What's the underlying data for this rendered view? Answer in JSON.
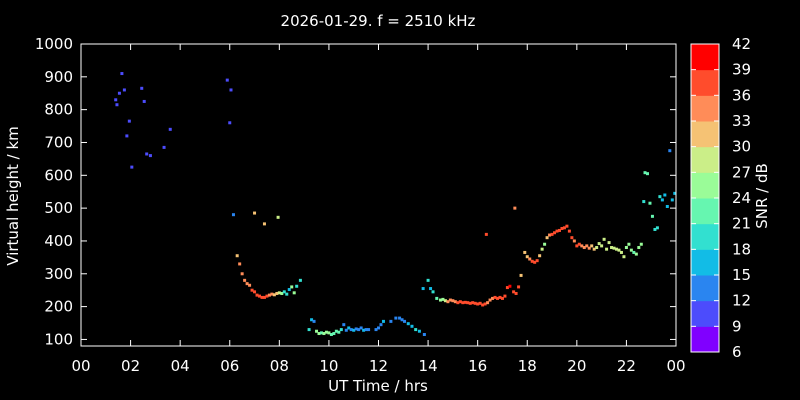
{
  "chart_data": {
    "type": "scatter",
    "title": "2026-01-29. f = 2510 kHz",
    "xlabel": "UT Time / hrs",
    "ylabel": "Virtual height / km",
    "xlim": [
      0,
      24
    ],
    "ylim": [
      80,
      1000
    ],
    "x_ticks": [
      "00",
      "02",
      "04",
      "06",
      "08",
      "10",
      "12",
      "14",
      "16",
      "18",
      "20",
      "22",
      "00"
    ],
    "y_ticks": [
      100,
      200,
      300,
      400,
      500,
      600,
      700,
      800,
      900,
      1000
    ],
    "colorbar": {
      "label": "SNR / dB",
      "range": [
        6,
        42
      ],
      "ticks": [
        6,
        9,
        12,
        15,
        18,
        21,
        24,
        27,
        30,
        33,
        36,
        39,
        42
      ],
      "colors": [
        "#8000ff",
        "#4c4cfc",
        "#2a85f0",
        "#12bce6",
        "#32e0d0",
        "#66f6b0",
        "#9afc98",
        "#cbee88",
        "#f5c274",
        "#ff8c58",
        "#ff4c2c",
        "#ff0000"
      ]
    },
    "points": [
      [
        1.4,
        830,
        9
      ],
      [
        1.45,
        815,
        9
      ],
      [
        1.55,
        850,
        9
      ],
      [
        1.65,
        910,
        10
      ],
      [
        1.75,
        860,
        9
      ],
      [
        1.85,
        720,
        9
      ],
      [
        1.95,
        765,
        10
      ],
      [
        2.05,
        625,
        10
      ],
      [
        2.45,
        865,
        10
      ],
      [
        2.55,
        825,
        10
      ],
      [
        2.65,
        665,
        9
      ],
      [
        2.8,
        660,
        9
      ],
      [
        3.35,
        685,
        10
      ],
      [
        3.6,
        740,
        10
      ],
      [
        5.9,
        890,
        10
      ],
      [
        6.0,
        760,
        11
      ],
      [
        6.05,
        860,
        11
      ],
      [
        6.15,
        480,
        13
      ],
      [
        6.3,
        355,
        32
      ],
      [
        6.4,
        330,
        33
      ],
      [
        6.5,
        300,
        34
      ],
      [
        6.6,
        280,
        34
      ],
      [
        6.7,
        270,
        34
      ],
      [
        6.8,
        265,
        35
      ],
      [
        6.9,
        250,
        36
      ],
      [
        7.0,
        245,
        36
      ],
      [
        7.1,
        235,
        37
      ],
      [
        7.2,
        232,
        37
      ],
      [
        7.3,
        228,
        37
      ],
      [
        7.4,
        228,
        37
      ],
      [
        7.5,
        232,
        36
      ],
      [
        7.6,
        235,
        35
      ],
      [
        7.7,
        238,
        33
      ],
      [
        7.8,
        236,
        32
      ],
      [
        7.9,
        240,
        30
      ],
      [
        8.0,
        242,
        29
      ],
      [
        8.1,
        240,
        26
      ],
      [
        8.2,
        245,
        20
      ],
      [
        8.3,
        238,
        18
      ],
      [
        8.4,
        252,
        17
      ],
      [
        8.5,
        260,
        25
      ],
      [
        8.6,
        242,
        24
      ],
      [
        8.7,
        262,
        20
      ],
      [
        8.85,
        280,
        18
      ],
      [
        7.0,
        485,
        30
      ],
      [
        7.4,
        452,
        30
      ],
      [
        7.95,
        472,
        28
      ],
      [
        9.2,
        130,
        18
      ],
      [
        9.3,
        160,
        15
      ],
      [
        9.4,
        155,
        12
      ],
      [
        9.5,
        125,
        24
      ],
      [
        9.6,
        118,
        24
      ],
      [
        9.7,
        120,
        23
      ],
      [
        9.8,
        118,
        24
      ],
      [
        9.9,
        122,
        25
      ],
      [
        10.0,
        120,
        24
      ],
      [
        10.1,
        115,
        23
      ],
      [
        10.2,
        118,
        22
      ],
      [
        10.3,
        125,
        22
      ],
      [
        10.4,
        122,
        21
      ],
      [
        10.5,
        130,
        18
      ],
      [
        10.6,
        145,
        13
      ],
      [
        10.7,
        128,
        14
      ],
      [
        10.8,
        135,
        15
      ],
      [
        10.9,
        130,
        14
      ],
      [
        11.0,
        128,
        15
      ],
      [
        11.1,
        132,
        14
      ],
      [
        11.2,
        130,
        14
      ],
      [
        11.3,
        135,
        13
      ],
      [
        11.4,
        128,
        15
      ],
      [
        11.5,
        130,
        14
      ],
      [
        11.6,
        130,
        13
      ],
      [
        11.9,
        130,
        14
      ],
      [
        12.0,
        135,
        13
      ],
      [
        12.1,
        145,
        14
      ],
      [
        12.2,
        155,
        15
      ],
      [
        12.5,
        155,
        13
      ],
      [
        12.7,
        165,
        12
      ],
      [
        12.85,
        165,
        13
      ],
      [
        12.95,
        160,
        14
      ],
      [
        13.05,
        155,
        14
      ],
      [
        13.2,
        148,
        15
      ],
      [
        13.35,
        140,
        16
      ],
      [
        13.5,
        130,
        18
      ],
      [
        13.65,
        125,
        16
      ],
      [
        13.85,
        115,
        13
      ],
      [
        13.8,
        255,
        15
      ],
      [
        14.0,
        280,
        18
      ],
      [
        14.1,
        255,
        17
      ],
      [
        14.2,
        245,
        20
      ],
      [
        14.35,
        225,
        21
      ],
      [
        14.5,
        220,
        24
      ],
      [
        14.6,
        222,
        26
      ],
      [
        14.7,
        218,
        28
      ],
      [
        14.8,
        215,
        33
      ],
      [
        14.9,
        220,
        34
      ],
      [
        15.0,
        218,
        35
      ],
      [
        15.1,
        215,
        35
      ],
      [
        15.2,
        212,
        36
      ],
      [
        15.3,
        215,
        36
      ],
      [
        15.4,
        212,
        37
      ],
      [
        15.5,
        213,
        37
      ],
      [
        15.6,
        212,
        36
      ],
      [
        15.7,
        210,
        36
      ],
      [
        15.8,
        212,
        37
      ],
      [
        15.9,
        210,
        37
      ],
      [
        16.0,
        208,
        37
      ],
      [
        16.1,
        210,
        37
      ],
      [
        16.2,
        205,
        37
      ],
      [
        16.3,
        208,
        36
      ],
      [
        16.4,
        212,
        35
      ],
      [
        16.5,
        220,
        34
      ],
      [
        16.6,
        225,
        34
      ],
      [
        16.7,
        228,
        36
      ],
      [
        16.8,
        225,
        36
      ],
      [
        16.9,
        228,
        36
      ],
      [
        17.0,
        225,
        37
      ],
      [
        17.1,
        232,
        37
      ],
      [
        17.2,
        258,
        38
      ],
      [
        17.3,
        262,
        39
      ],
      [
        17.45,
        245,
        38
      ],
      [
        17.55,
        240,
        37
      ],
      [
        17.65,
        260,
        36
      ],
      [
        17.75,
        295,
        31
      ],
      [
        16.35,
        420,
        37
      ],
      [
        17.5,
        500,
        33
      ],
      [
        17.9,
        365,
        31
      ],
      [
        18.0,
        352,
        32
      ],
      [
        18.1,
        345,
        34
      ],
      [
        18.2,
        338,
        36
      ],
      [
        18.3,
        335,
        37
      ],
      [
        18.4,
        340,
        37
      ],
      [
        18.5,
        355,
        32
      ],
      [
        18.6,
        375,
        28
      ],
      [
        18.7,
        390,
        25
      ],
      [
        18.8,
        410,
        32
      ],
      [
        18.9,
        418,
        35
      ],
      [
        19.0,
        420,
        37
      ],
      [
        19.1,
        425,
        37
      ],
      [
        19.2,
        430,
        37
      ],
      [
        19.3,
        432,
        36
      ],
      [
        19.4,
        438,
        36
      ],
      [
        19.5,
        440,
        36
      ],
      [
        19.6,
        445,
        37
      ],
      [
        19.7,
        430,
        37
      ],
      [
        19.8,
        410,
        36
      ],
      [
        19.9,
        400,
        35
      ],
      [
        20.0,
        385,
        36
      ],
      [
        20.1,
        390,
        36
      ],
      [
        20.2,
        385,
        35
      ],
      [
        20.3,
        380,
        34
      ],
      [
        20.4,
        385,
        33
      ],
      [
        20.5,
        378,
        33
      ],
      [
        20.6,
        385,
        32
      ],
      [
        20.7,
        375,
        31
      ],
      [
        20.8,
        380,
        29
      ],
      [
        20.9,
        392,
        28
      ],
      [
        21.0,
        385,
        27
      ],
      [
        21.1,
        405,
        28
      ],
      [
        21.2,
        375,
        27
      ],
      [
        21.3,
        395,
        28
      ],
      [
        21.4,
        380,
        27
      ],
      [
        21.5,
        378,
        29
      ],
      [
        21.6,
        375,
        28
      ],
      [
        21.7,
        372,
        28
      ],
      [
        21.8,
        365,
        27
      ],
      [
        21.9,
        352,
        27
      ],
      [
        22.0,
        380,
        26
      ],
      [
        22.1,
        390,
        25
      ],
      [
        22.2,
        372,
        24
      ],
      [
        22.3,
        365,
        23
      ],
      [
        22.4,
        360,
        24
      ],
      [
        22.5,
        380,
        26
      ],
      [
        22.6,
        390,
        25
      ],
      [
        22.7,
        520,
        18
      ],
      [
        22.75,
        608,
        23
      ],
      [
        22.85,
        605,
        23
      ],
      [
        22.95,
        515,
        22
      ],
      [
        23.05,
        475,
        21
      ],
      [
        23.15,
        435,
        20
      ],
      [
        23.25,
        440,
        19
      ],
      [
        23.35,
        535,
        18
      ],
      [
        23.45,
        525,
        17
      ],
      [
        23.55,
        540,
        16
      ],
      [
        23.65,
        505,
        15
      ],
      [
        23.75,
        675,
        14
      ],
      [
        23.85,
        525,
        15
      ],
      [
        23.95,
        545,
        16
      ]
    ]
  }
}
